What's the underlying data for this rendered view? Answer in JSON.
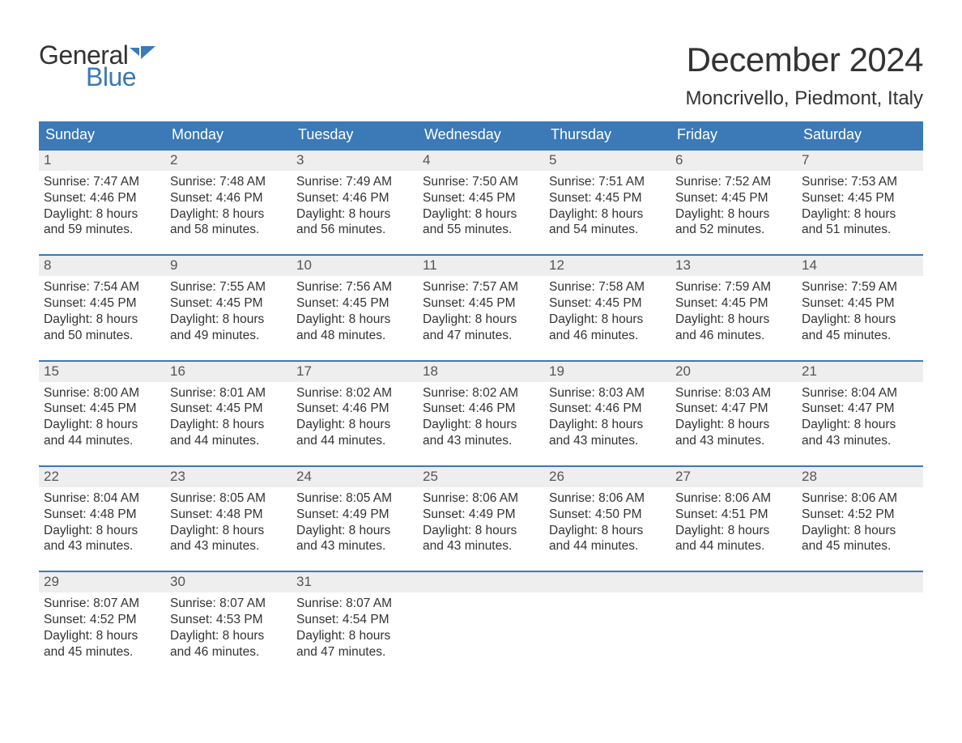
{
  "brand": {
    "word1": "General",
    "word2": "Blue",
    "icon_color": "#3b79b7"
  },
  "title": "December 2024",
  "location": "Moncrivello, Piedmont, Italy",
  "colors": {
    "header_bg": "#3b79b7",
    "header_text": "#ffffff",
    "daynum_bg": "#eeeeee",
    "text": "#333333",
    "week_border": "#3b79b7"
  },
  "fonts": {
    "title_size": 42,
    "location_size": 24,
    "dayheader_size": 18,
    "body_size": 15.5
  },
  "day_names": [
    "Sunday",
    "Monday",
    "Tuesday",
    "Wednesday",
    "Thursday",
    "Friday",
    "Saturday"
  ],
  "days": [
    {
      "n": 1,
      "sunrise": "7:47 AM",
      "sunset": "4:46 PM",
      "daylight": "8 hours and 59 minutes."
    },
    {
      "n": 2,
      "sunrise": "7:48 AM",
      "sunset": "4:46 PM",
      "daylight": "8 hours and 58 minutes."
    },
    {
      "n": 3,
      "sunrise": "7:49 AM",
      "sunset": "4:46 PM",
      "daylight": "8 hours and 56 minutes."
    },
    {
      "n": 4,
      "sunrise": "7:50 AM",
      "sunset": "4:45 PM",
      "daylight": "8 hours and 55 minutes."
    },
    {
      "n": 5,
      "sunrise": "7:51 AM",
      "sunset": "4:45 PM",
      "daylight": "8 hours and 54 minutes."
    },
    {
      "n": 6,
      "sunrise": "7:52 AM",
      "sunset": "4:45 PM",
      "daylight": "8 hours and 52 minutes."
    },
    {
      "n": 7,
      "sunrise": "7:53 AM",
      "sunset": "4:45 PM",
      "daylight": "8 hours and 51 minutes."
    },
    {
      "n": 8,
      "sunrise": "7:54 AM",
      "sunset": "4:45 PM",
      "daylight": "8 hours and 50 minutes."
    },
    {
      "n": 9,
      "sunrise": "7:55 AM",
      "sunset": "4:45 PM",
      "daylight": "8 hours and 49 minutes."
    },
    {
      "n": 10,
      "sunrise": "7:56 AM",
      "sunset": "4:45 PM",
      "daylight": "8 hours and 48 minutes."
    },
    {
      "n": 11,
      "sunrise": "7:57 AM",
      "sunset": "4:45 PM",
      "daylight": "8 hours and 47 minutes."
    },
    {
      "n": 12,
      "sunrise": "7:58 AM",
      "sunset": "4:45 PM",
      "daylight": "8 hours and 46 minutes."
    },
    {
      "n": 13,
      "sunrise": "7:59 AM",
      "sunset": "4:45 PM",
      "daylight": "8 hours and 46 minutes."
    },
    {
      "n": 14,
      "sunrise": "7:59 AM",
      "sunset": "4:45 PM",
      "daylight": "8 hours and 45 minutes."
    },
    {
      "n": 15,
      "sunrise": "8:00 AM",
      "sunset": "4:45 PM",
      "daylight": "8 hours and 44 minutes."
    },
    {
      "n": 16,
      "sunrise": "8:01 AM",
      "sunset": "4:45 PM",
      "daylight": "8 hours and 44 minutes."
    },
    {
      "n": 17,
      "sunrise": "8:02 AM",
      "sunset": "4:46 PM",
      "daylight": "8 hours and 44 minutes."
    },
    {
      "n": 18,
      "sunrise": "8:02 AM",
      "sunset": "4:46 PM",
      "daylight": "8 hours and 43 minutes."
    },
    {
      "n": 19,
      "sunrise": "8:03 AM",
      "sunset": "4:46 PM",
      "daylight": "8 hours and 43 minutes."
    },
    {
      "n": 20,
      "sunrise": "8:03 AM",
      "sunset": "4:47 PM",
      "daylight": "8 hours and 43 minutes."
    },
    {
      "n": 21,
      "sunrise": "8:04 AM",
      "sunset": "4:47 PM",
      "daylight": "8 hours and 43 minutes."
    },
    {
      "n": 22,
      "sunrise": "8:04 AM",
      "sunset": "4:48 PM",
      "daylight": "8 hours and 43 minutes."
    },
    {
      "n": 23,
      "sunrise": "8:05 AM",
      "sunset": "4:48 PM",
      "daylight": "8 hours and 43 minutes."
    },
    {
      "n": 24,
      "sunrise": "8:05 AM",
      "sunset": "4:49 PM",
      "daylight": "8 hours and 43 minutes."
    },
    {
      "n": 25,
      "sunrise": "8:06 AM",
      "sunset": "4:49 PM",
      "daylight": "8 hours and 43 minutes."
    },
    {
      "n": 26,
      "sunrise": "8:06 AM",
      "sunset": "4:50 PM",
      "daylight": "8 hours and 44 minutes."
    },
    {
      "n": 27,
      "sunrise": "8:06 AM",
      "sunset": "4:51 PM",
      "daylight": "8 hours and 44 minutes."
    },
    {
      "n": 28,
      "sunrise": "8:06 AM",
      "sunset": "4:52 PM",
      "daylight": "8 hours and 45 minutes."
    },
    {
      "n": 29,
      "sunrise": "8:07 AM",
      "sunset": "4:52 PM",
      "daylight": "8 hours and 45 minutes."
    },
    {
      "n": 30,
      "sunrise": "8:07 AM",
      "sunset": "4:53 PM",
      "daylight": "8 hours and 46 minutes."
    },
    {
      "n": 31,
      "sunrise": "8:07 AM",
      "sunset": "4:54 PM",
      "daylight": "8 hours and 47 minutes."
    }
  ],
  "labels": {
    "sunrise": "Sunrise:",
    "sunset": "Sunset:",
    "daylight": "Daylight:"
  },
  "layout": {
    "first_weekday_offset": 0,
    "weeks": 5,
    "cols": 7
  }
}
